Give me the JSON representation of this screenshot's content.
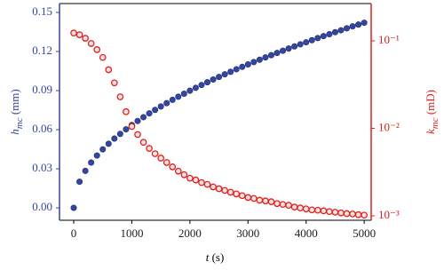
{
  "chart_data": {
    "type": "scatter",
    "x_label": {
      "main": "t",
      "unit": "(s)"
    },
    "y_label": {
      "main": "h",
      "sub": "mc",
      "unit": "(mm)"
    },
    "y2_label": {
      "main": "k",
      "sub": "mc",
      "unit": "(mD)"
    },
    "x": [
      0,
      100,
      200,
      300,
      400,
      500,
      600,
      700,
      800,
      900,
      1000,
      1100,
      1200,
      1300,
      1400,
      1500,
      1600,
      1700,
      1800,
      1900,
      2000,
      2100,
      2200,
      2300,
      2400,
      2500,
      2600,
      2700,
      2800,
      2900,
      3000,
      3100,
      3200,
      3300,
      3400,
      3500,
      3600,
      3700,
      3800,
      3900,
      4000,
      4100,
      4200,
      4300,
      4400,
      4500,
      4600,
      4700,
      4800,
      4900,
      5000
    ],
    "series": [
      {
        "color": "#34469e",
        "values": [
          0,
          0.0201,
          0.0284,
          0.0348,
          0.0402,
          0.0449,
          0.0492,
          0.0532,
          0.0568,
          0.0603,
          0.0636,
          0.0667,
          0.0696,
          0.0725,
          0.0752,
          0.0778,
          0.0804,
          0.0829,
          0.0853,
          0.0876,
          0.0899,
          0.0921,
          0.0943,
          0.0964,
          0.0985,
          0.1005,
          0.1025,
          0.1044,
          0.1064,
          0.1082,
          0.1101,
          0.1119,
          0.1137,
          0.1155,
          0.1172,
          0.1189,
          0.1206,
          0.1223,
          0.1239,
          0.1255,
          0.1271,
          0.1287,
          0.1303,
          0.1318,
          0.1333,
          0.1348,
          0.1363,
          0.1378,
          0.1393,
          0.1407,
          0.1421
        ]
      },
      {
        "color": "#e0201c",
        "axis": "y2",
        "values": [
          0.123,
          0.1175,
          0.107,
          0.0933,
          0.0794,
          0.0646,
          0.0468,
          0.0331,
          0.0229,
          0.0155,
          0.0105,
          0.00851,
          0.00692,
          0.00589,
          0.00513,
          0.00457,
          0.00407,
          0.00363,
          0.00324,
          0.00295,
          0.00269,
          0.00257,
          0.0024,
          0.00229,
          0.00214,
          0.00204,
          0.00195,
          0.00186,
          0.00178,
          0.0017,
          0.00162,
          0.00158,
          0.00151,
          0.00148,
          0.00145,
          0.00138,
          0.00135,
          0.00132,
          0.00126,
          0.00123,
          0.0012,
          0.00117,
          0.00116,
          0.00114,
          0.00112,
          0.0011,
          0.00108,
          0.00106,
          0.00105,
          0.00103,
          0.00102
        ]
      }
    ],
    "xlim": [
      -245,
      5120
    ],
    "xticks": [
      0,
      1000,
      2000,
      3000,
      4000,
      5000
    ],
    "ylim": [
      -0.0095,
      0.1568
    ],
    "yticks": [
      {
        "value": 0,
        "label": "0.00"
      },
      0.03,
      0.06,
      0.09,
      0.12,
      0.15
    ],
    "y2lim": [
      0.00089,
      0.267
    ],
    "y2_log": true,
    "y2ticks": [
      {
        "value": 0.001,
        "label": "10⁻³"
      },
      {
        "value": 0.01,
        "label": "10⁻²"
      },
      {
        "value": 0.1,
        "label": "10⁻¹"
      }
    ]
  }
}
